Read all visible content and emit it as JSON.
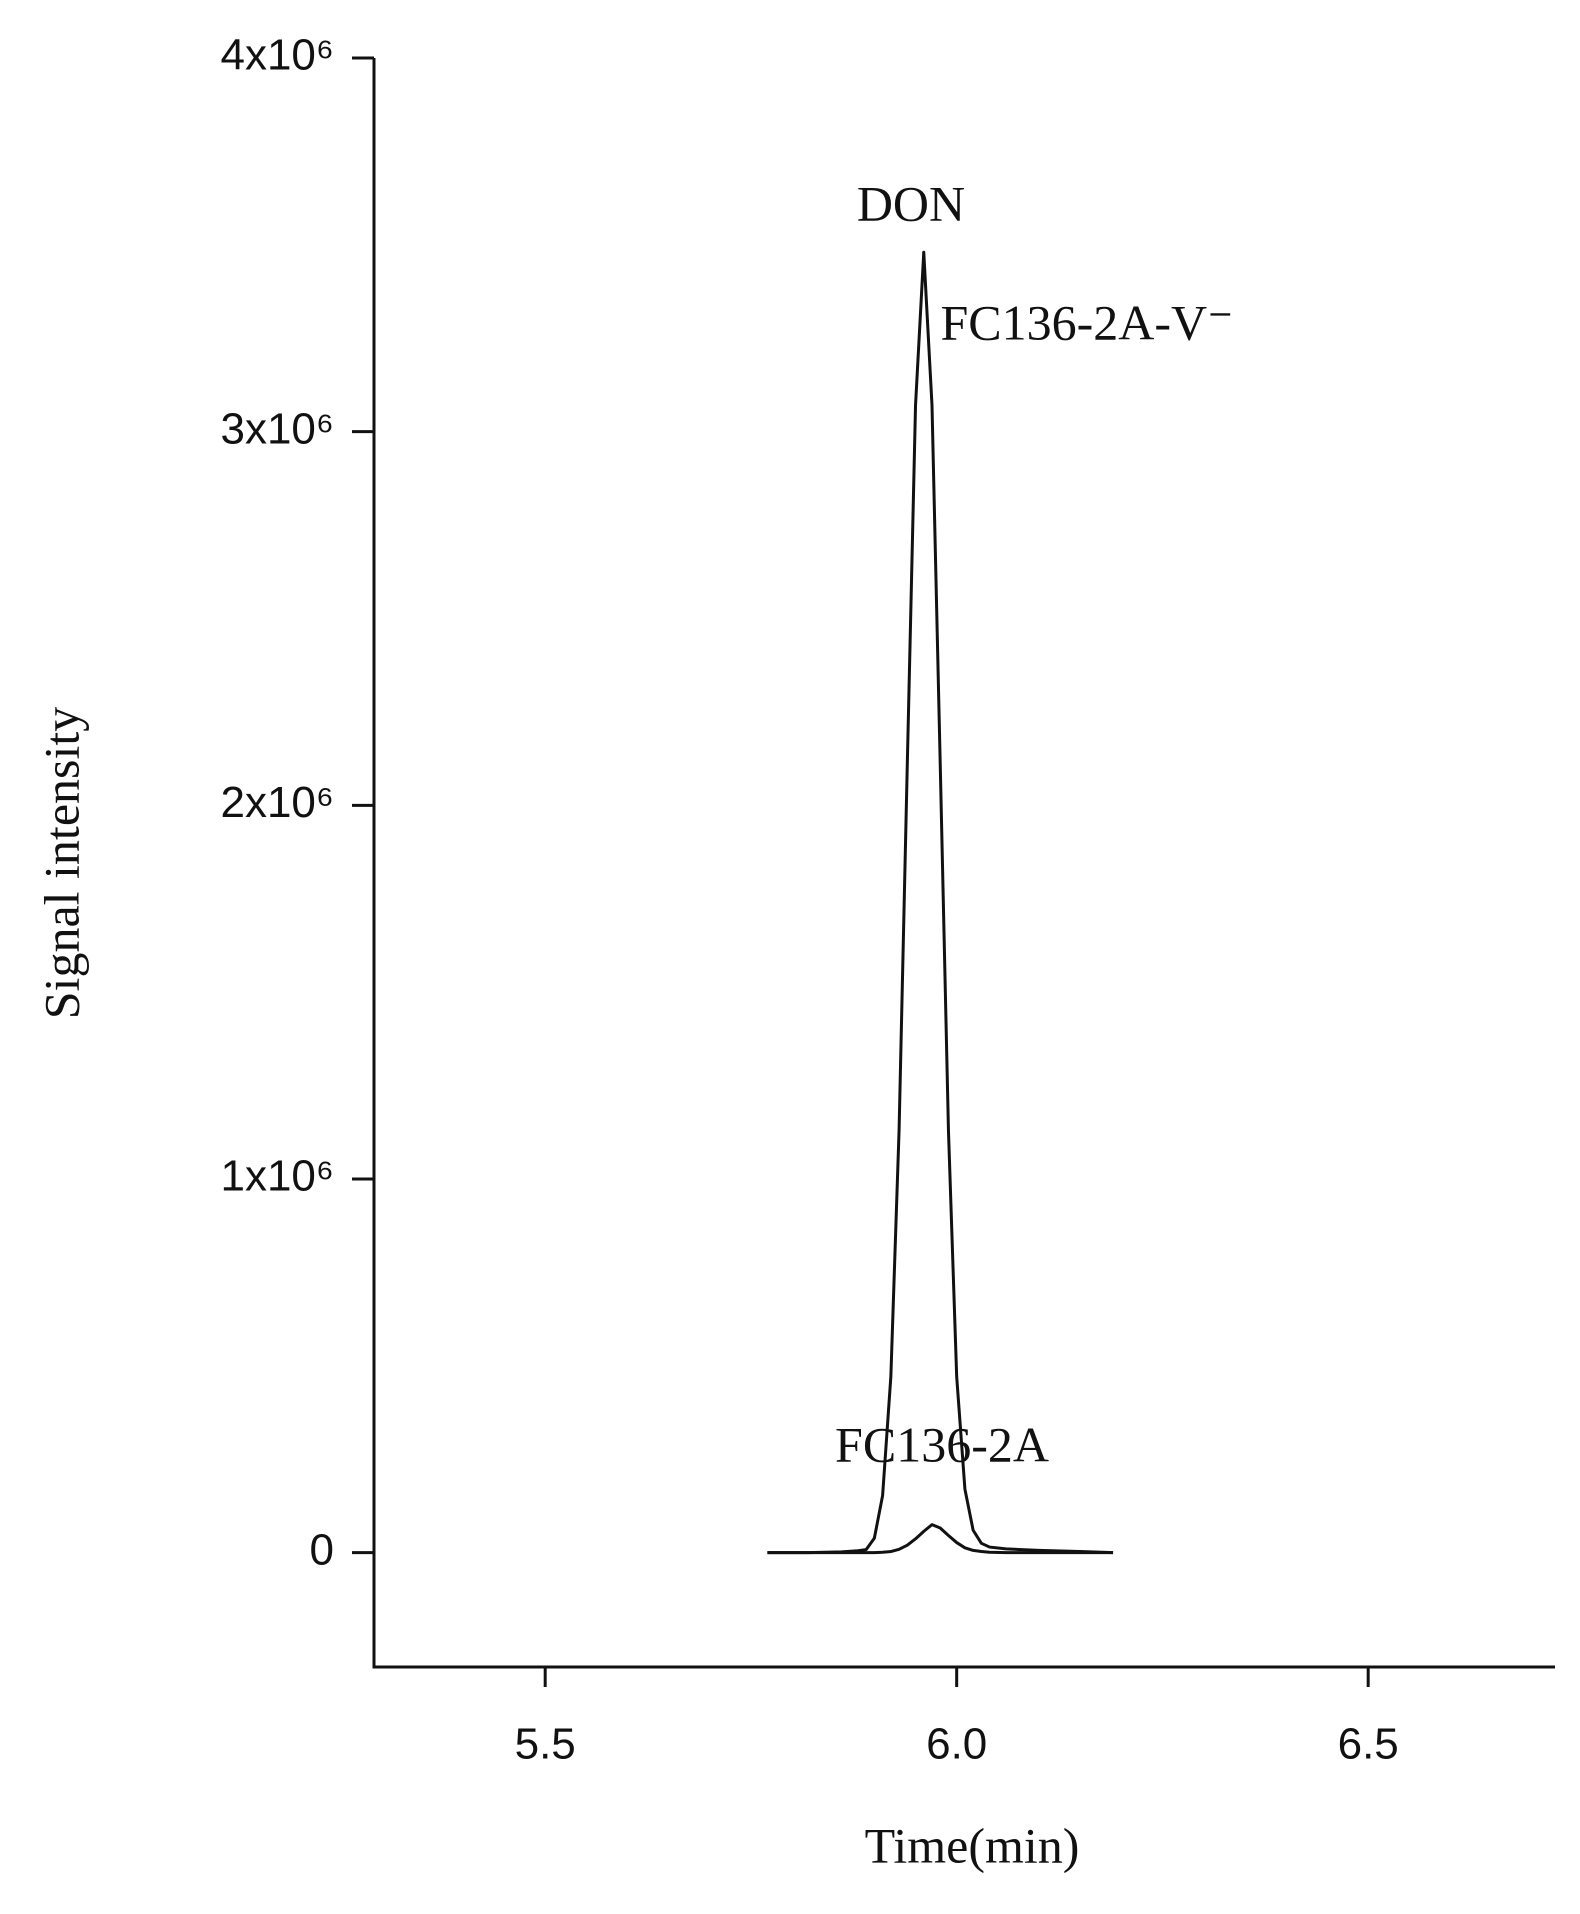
{
  "chart_data": {
    "type": "line",
    "x_label": "Time(min)",
    "y_label": "Signal intensity",
    "x": [
      5.77,
      5.82,
      5.86,
      5.88,
      5.89,
      5.9,
      5.91,
      5.92,
      5.93,
      5.94,
      5.95,
      5.96,
      5.97,
      5.98,
      5.99,
      6.0,
      6.01,
      6.02,
      6.03,
      6.04,
      6.06,
      6.1,
      6.15,
      6.19
    ],
    "series": [
      {
        "name": "FC136-2A-V⁻",
        "color": "#111111",
        "values": [
          0,
          0,
          2000,
          5000,
          8000,
          39000,
          153000,
          471000,
          1130000,
          2111000,
          3071000,
          3480000,
          3071000,
          2111000,
          1130000,
          471000,
          170000,
          60000,
          25000,
          15000,
          10000,
          6000,
          3000,
          0
        ]
      },
      {
        "name": "FC136-2A",
        "color": "#111111",
        "values": [
          0,
          0,
          0,
          0,
          0,
          0,
          1000,
          3000,
          9000,
          20000,
          37000,
          57000,
          75000,
          66000,
          46000,
          27000,
          13000,
          6000,
          3000,
          1000,
          0,
          0,
          0,
          0
        ]
      }
    ],
    "annotations": [
      "DON"
    ],
    "xlim": [
      5.292,
      6.727
    ],
    "xticks": [
      {
        "value": 5.5,
        "label": "5.5"
      },
      {
        "value": 6.0,
        "label": "6.0"
      },
      {
        "value": 6.5,
        "label": "6.5"
      }
    ],
    "ylim": [
      -306000,
      4000000
    ],
    "yticks": [
      0,
      {
        "value": 1000000,
        "label": "1x10⁶"
      },
      {
        "value": 2000000,
        "label": "2x10⁶"
      },
      {
        "value": 3000000,
        "label": "3x10⁶"
      },
      {
        "value": 4000000,
        "label": "4x10⁶"
      }
    ],
    "grid": false
  }
}
